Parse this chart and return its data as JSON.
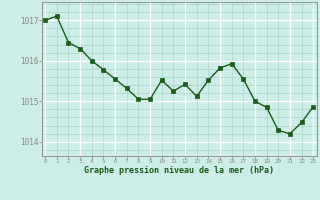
{
  "x": [
    0,
    1,
    2,
    3,
    4,
    5,
    6,
    7,
    8,
    9,
    10,
    11,
    12,
    13,
    14,
    15,
    16,
    17,
    18,
    19,
    20,
    21,
    22,
    23
  ],
  "y": [
    1017.0,
    1017.1,
    1016.45,
    1016.3,
    1016.0,
    1015.78,
    1015.55,
    1015.32,
    1015.05,
    1015.05,
    1015.52,
    1015.25,
    1015.42,
    1015.12,
    1015.52,
    1015.82,
    1015.93,
    1015.55,
    1015.0,
    1014.85,
    1014.28,
    1014.2,
    1014.48,
    1014.87
  ],
  "line_color": "#1a5c1a",
  "marker_color": "#1a5c1a",
  "bg_color": "#cdeee6",
  "grid_major_color": "#b0d8ce",
  "grid_white_color": "#ffffff",
  "xlabel": "Graphe pression niveau de la mer (hPa)",
  "xlabel_color": "#1a5c1a",
  "tick_color": "#1a5c1a",
  "axis_color": "#888888",
  "yticks": [
    1014,
    1015,
    1016,
    1017
  ],
  "xticks": [
    0,
    1,
    2,
    3,
    4,
    5,
    6,
    7,
    8,
    9,
    10,
    11,
    12,
    13,
    14,
    15,
    16,
    17,
    18,
    19,
    20,
    21,
    22,
    23
  ],
  "ylim": [
    1013.65,
    1017.45
  ],
  "xlim": [
    -0.3,
    23.3
  ]
}
